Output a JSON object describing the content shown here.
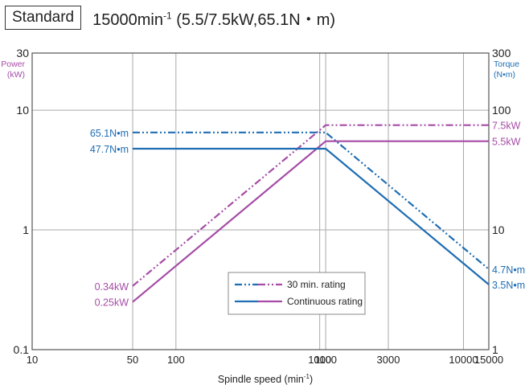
{
  "header": {
    "box_label": "Standard",
    "title_main": "15000min",
    "title_sup": "-1",
    "title_rest": " (5.5/7.5kW,65.1N・m)"
  },
  "colors": {
    "blue": "#1f6db3",
    "purple": "#a64ca6",
    "grid": "#aaaaaa",
    "axis": "#555555",
    "text": "#222222"
  },
  "chart_data": {
    "type": "line",
    "xscale": "log",
    "yscale": "log",
    "xlabel": "Spindle speed (min-1)",
    "xlabel_main": "Spindle speed (min",
    "xlabel_sup": "-1",
    "xlabel_end": ")",
    "ylabel_left": [
      "Power",
      "(kW)"
    ],
    "ylabel_right": [
      "Torque",
      "(N•m)"
    ],
    "xlim": [
      10,
      15000
    ],
    "ylim_left": [
      0.1,
      30
    ],
    "ylim_right": [
      1,
      300
    ],
    "xticks": [
      10,
      50,
      100,
      1000,
      1100,
      3000,
      10000,
      15000
    ],
    "xtick_labels": [
      "10",
      "50",
      "100",
      "1000",
      "1100",
      "3000",
      "10000",
      "15000"
    ],
    "yticks_left": [
      0.1,
      1,
      10,
      30
    ],
    "ytick_labels_left": [
      "0.1",
      "1",
      "10",
      "30"
    ],
    "yticks_right": [
      1,
      10,
      100,
      300
    ],
    "ytick_labels_right": [
      "1",
      "10",
      "100",
      "300"
    ],
    "grid": true,
    "series": [
      {
        "name": "30 min. rating",
        "quantity": "power",
        "axis": "left",
        "color": "purple",
        "dash": "dashdotdot",
        "x": [
          50,
          1100,
          15000
        ],
        "y": [
          0.34,
          7.5,
          7.5
        ]
      },
      {
        "name": "30 min. rating",
        "quantity": "torque",
        "axis": "right",
        "color": "blue",
        "dash": "dashdotdot",
        "x": [
          50,
          1100,
          15000
        ],
        "y": [
          65.1,
          65.1,
          4.7
        ]
      },
      {
        "name": "Continuous rating",
        "quantity": "power",
        "axis": "left",
        "color": "purple",
        "dash": "solid",
        "x": [
          50,
          1100,
          15000
        ],
        "y": [
          0.25,
          5.5,
          5.5
        ]
      },
      {
        "name": "Continuous rating",
        "quantity": "torque",
        "axis": "right",
        "color": "blue",
        "dash": "solid",
        "x": [
          50,
          1100,
          15000
        ],
        "y": [
          47.7,
          47.7,
          3.5
        ]
      }
    ],
    "annotations": [
      {
        "text": "65.1N•m",
        "x": 50,
        "y": 65.1,
        "axis": "right",
        "side": "left",
        "color": "blue"
      },
      {
        "text": "47.7N•m",
        "x": 50,
        "y": 47.7,
        "axis": "right",
        "side": "left",
        "color": "blue"
      },
      {
        "text": "0.34kW",
        "x": 50,
        "y": 0.34,
        "axis": "left",
        "side": "left",
        "color": "purple"
      },
      {
        "text": "0.25kW",
        "x": 50,
        "y": 0.25,
        "axis": "left",
        "side": "left",
        "color": "purple"
      },
      {
        "text": "7.5kW",
        "x": 15000,
        "y": 7.5,
        "axis": "left",
        "side": "right",
        "color": "purple"
      },
      {
        "text": "5.5kW",
        "x": 15000,
        "y": 5.5,
        "axis": "left",
        "side": "right",
        "color": "purple"
      },
      {
        "text": "4.7N•m",
        "x": 15000,
        "y": 4.7,
        "axis": "right",
        "side": "right",
        "color": "blue"
      },
      {
        "text": "3.5N•m",
        "x": 15000,
        "y": 3.5,
        "axis": "right",
        "side": "right",
        "color": "blue"
      }
    ],
    "legend": {
      "placement": "lower-center",
      "entries": [
        {
          "label": "30 min. rating",
          "dash": "dashdotdot"
        },
        {
          "label": "Continuous rating",
          "dash": "solid"
        }
      ]
    }
  }
}
